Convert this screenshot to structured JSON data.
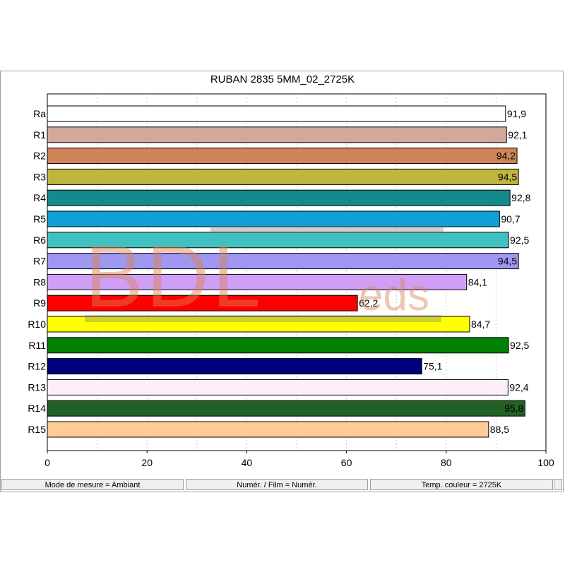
{
  "chart_data": {
    "type": "bar",
    "orientation": "horizontal",
    "title": "RUBAN 2835 5MM_02_2725K",
    "xlim": [
      0,
      100
    ],
    "x_ticks": [
      0,
      20,
      40,
      60,
      80,
      100
    ],
    "x_tick_labels": [
      "0",
      "20",
      "40",
      "60",
      "80",
      "100"
    ],
    "grid": "vertical dashed",
    "categories": [
      "Ra",
      "R1",
      "R2",
      "R3",
      "R4",
      "R5",
      "R6",
      "R7",
      "R8",
      "R9",
      "R10",
      "R11",
      "R12",
      "R13",
      "R14",
      "R15"
    ],
    "values": [
      91.9,
      92.1,
      94.2,
      94.5,
      92.8,
      90.7,
      92.5,
      94.5,
      84.1,
      62.2,
      84.7,
      92.5,
      75.1,
      92.4,
      95.8,
      88.5
    ],
    "value_labels": [
      "91,9",
      "92,1",
      "94,2",
      "94,5",
      "92,8",
      "90,7",
      "92,5",
      "94,5",
      "84,1",
      "62,2",
      "84,7",
      "92,5",
      "75,1",
      "92,4",
      "95,8",
      "88,5"
    ],
    "bar_colors": [
      "#ffffff",
      "#d4a89a",
      "#cd8456",
      "#c0b53e",
      "#148a8a",
      "#109fd6",
      "#40c1c0",
      "#9e98f2",
      "#cf9ff6",
      "#ff0000",
      "#ffff00",
      "#008000",
      "#00007f",
      "#fbeef9",
      "#216124",
      "#ffcb96"
    ]
  },
  "status": {
    "mode": "Mode de mesure = Ambiant",
    "numer": "Numér. / Film = Numér.",
    "temp": "Temp. couleur = 2725K"
  },
  "watermark": {
    "main": "BDL",
    "sub": "eds"
  }
}
